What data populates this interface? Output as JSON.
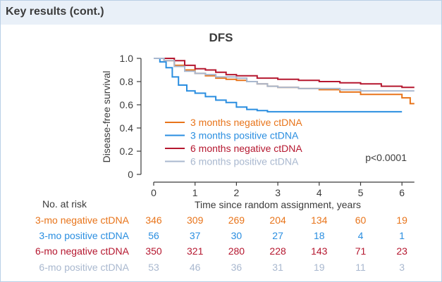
{
  "header": {
    "title": "Key results (cont.)"
  },
  "chart_data": {
    "type": "line",
    "title": "DFS",
    "xlabel": "Time since random assignment, years",
    "ylabel": "Disease-free survival",
    "xlim": [
      0,
      6.3
    ],
    "ylim": [
      0,
      1.0
    ],
    "x_ticks": [
      "0",
      "1",
      "2",
      "3",
      "4",
      "5",
      "6"
    ],
    "y_ticks": [
      "0",
      "0.2",
      "0.4",
      "0.6",
      "0.8",
      "1.0"
    ],
    "annotation": "p<0.0001",
    "legend_placement": "center-left",
    "series": [
      {
        "name": "3 months negative ctDNA",
        "color": "#e8741a",
        "points": [
          [
            0,
            1.0
          ],
          [
            0.25,
            0.98
          ],
          [
            0.5,
            0.94
          ],
          [
            0.75,
            0.9
          ],
          [
            1.0,
            0.87
          ],
          [
            1.25,
            0.85
          ],
          [
            1.5,
            0.83
          ],
          [
            1.75,
            0.82
          ],
          [
            2.0,
            0.81
          ],
          [
            2.25,
            0.8
          ],
          [
            2.5,
            0.78
          ],
          [
            2.75,
            0.76
          ],
          [
            3.0,
            0.75
          ],
          [
            3.5,
            0.74
          ],
          [
            4.0,
            0.73
          ],
          [
            4.5,
            0.71
          ],
          [
            5.0,
            0.69
          ],
          [
            5.5,
            0.69
          ],
          [
            6.0,
            0.66
          ],
          [
            6.15,
            0.66
          ],
          [
            6.2,
            0.61
          ],
          [
            6.3,
            0.61
          ]
        ]
      },
      {
        "name": "3 months positive ctDNA",
        "color": "#2a8ee0",
        "points": [
          [
            0,
            1.0
          ],
          [
            0.15,
            0.97
          ],
          [
            0.3,
            0.92
          ],
          [
            0.45,
            0.84
          ],
          [
            0.6,
            0.77
          ],
          [
            0.8,
            0.72
          ],
          [
            1.0,
            0.7
          ],
          [
            1.25,
            0.67
          ],
          [
            1.5,
            0.64
          ],
          [
            1.75,
            0.62
          ],
          [
            2.0,
            0.58
          ],
          [
            2.25,
            0.56
          ],
          [
            2.5,
            0.55
          ],
          [
            2.75,
            0.55
          ],
          [
            2.75,
            0.54
          ],
          [
            4.0,
            0.54
          ],
          [
            5.0,
            0.54
          ],
          [
            6.0,
            0.54
          ]
        ]
      },
      {
        "name": "6 months negative ctDNA",
        "color": "#b5172f",
        "points": [
          [
            0,
            1.0
          ],
          [
            0.25,
            1.0
          ],
          [
            0.5,
            0.98
          ],
          [
            0.75,
            0.94
          ],
          [
            1.0,
            0.91
          ],
          [
            1.25,
            0.9
          ],
          [
            1.5,
            0.88
          ],
          [
            1.75,
            0.86
          ],
          [
            2.0,
            0.85
          ],
          [
            2.5,
            0.83
          ],
          [
            3.0,
            0.82
          ],
          [
            3.5,
            0.81
          ],
          [
            4.0,
            0.8
          ],
          [
            4.5,
            0.79
          ],
          [
            5.0,
            0.78
          ],
          [
            5.5,
            0.76
          ],
          [
            6.0,
            0.75
          ],
          [
            6.3,
            0.75
          ]
        ]
      },
      {
        "name": "6 months positive ctDNA",
        "color": "#a9b8cf",
        "points": [
          [
            0,
            1.0
          ],
          [
            0.25,
            0.98
          ],
          [
            0.5,
            0.93
          ],
          [
            0.75,
            0.89
          ],
          [
            1.0,
            0.87
          ],
          [
            1.25,
            0.86
          ],
          [
            1.5,
            0.84
          ],
          [
            1.75,
            0.84
          ],
          [
            2.0,
            0.83
          ],
          [
            2.25,
            0.8
          ],
          [
            2.5,
            0.78
          ],
          [
            2.75,
            0.76
          ],
          [
            3.0,
            0.75
          ],
          [
            3.5,
            0.74
          ],
          [
            4.0,
            0.74
          ],
          [
            4.5,
            0.73
          ],
          [
            5.0,
            0.72
          ],
          [
            5.5,
            0.72
          ],
          [
            6.0,
            0.72
          ],
          [
            6.3,
            0.72
          ]
        ]
      }
    ]
  },
  "risk_table": {
    "title": "No. at risk",
    "rows": [
      {
        "label": "3-mo negative ctDNA",
        "color": "#e8741a",
        "values": [
          "346",
          "309",
          "269",
          "204",
          "134",
          "60",
          "19"
        ]
      },
      {
        "label": "3-mo positive ctDNA",
        "color": "#2a8ee0",
        "values": [
          "56",
          "37",
          "30",
          "27",
          "18",
          "4",
          "1"
        ]
      },
      {
        "label": "6-mo negative ctDNA",
        "color": "#b5172f",
        "values": [
          "350",
          "321",
          "280",
          "228",
          "143",
          "71",
          "23"
        ]
      },
      {
        "label": "6-mo positive ctDNA",
        "color": "#a9b8cf",
        "values": [
          "53",
          "46",
          "36",
          "31",
          "19",
          "11",
          "3"
        ]
      }
    ]
  }
}
